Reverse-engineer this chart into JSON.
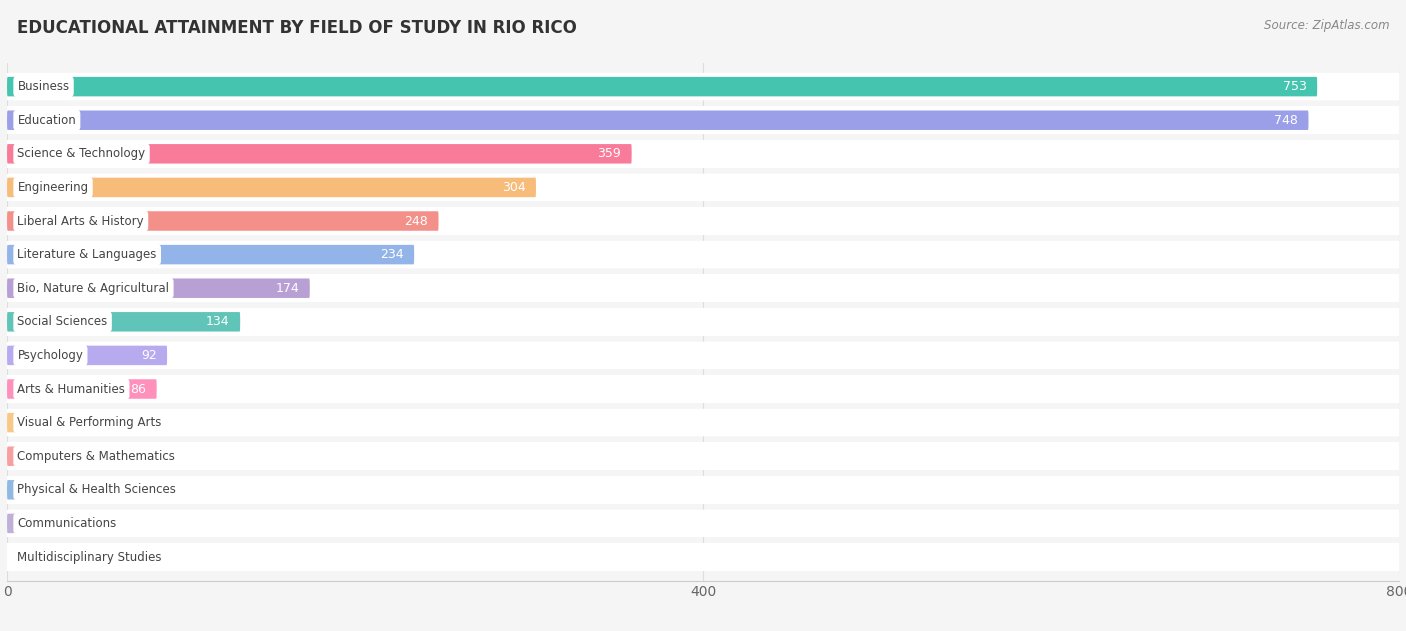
{
  "title": "EDUCATIONAL ATTAINMENT BY FIELD OF STUDY IN RIO RICO",
  "source": "Source: ZipAtlas.com",
  "categories": [
    "Business",
    "Education",
    "Science & Technology",
    "Engineering",
    "Liberal Arts & History",
    "Literature & Languages",
    "Bio, Nature & Agricultural",
    "Social Sciences",
    "Psychology",
    "Arts & Humanities",
    "Visual & Performing Arts",
    "Computers & Mathematics",
    "Physical & Health Sciences",
    "Communications",
    "Multidisciplinary Studies"
  ],
  "values": [
    753,
    748,
    359,
    304,
    248,
    234,
    174,
    134,
    92,
    86,
    21,
    18,
    18,
    6,
    0
  ],
  "bar_colors": [
    "#45c4b0",
    "#9b9fe8",
    "#f87b9a",
    "#f7bc7a",
    "#f4908a",
    "#92b4e8",
    "#b89fd4",
    "#60c4b8",
    "#b8aaee",
    "#ff8fbb",
    "#f8c88a",
    "#f8a0a0",
    "#90b8e0",
    "#c0b0d8",
    "#50c0b0"
  ],
  "xlim": [
    0,
    800
  ],
  "xticks": [
    0,
    400,
    800
  ],
  "background_color": "#f5f5f5",
  "row_bg_color": "#ffffff",
  "label_text_color": "#444444",
  "value_inside_color": "#ffffff",
  "value_outside_color": "#555555"
}
